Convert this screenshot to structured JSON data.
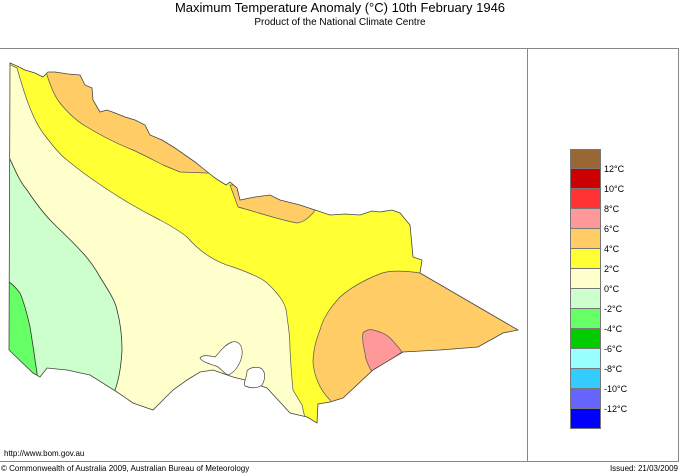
{
  "header": {
    "title": "Maximum Temperature Anomaly (°C)  10th February 1946",
    "subtitle": "Product of the National Climate Centre"
  },
  "legend": {
    "colors": [
      "#996633",
      "#cc0000",
      "#ff3333",
      "#ff9999",
      "#ffcc66",
      "#ffff33",
      "#ffffcc",
      "#ccffcc",
      "#66ff66",
      "#00cc00",
      "#99ffff",
      "#33ccff",
      "#6666ff",
      "#0000ff"
    ],
    "labels": [
      "12°C",
      "10°C",
      "8°C",
      "6°C",
      "4°C",
      "2°C",
      "0°C",
      "-2°C",
      "-4°C",
      "-6°C",
      "-8°C",
      "-10°C",
      "-12°C"
    ]
  },
  "map": {
    "region": "Victoria",
    "zones": [
      {
        "range": "-4 to -2°C",
        "color": "#66ff66",
        "area": "far south-west coast"
      },
      {
        "range": "-2 to 0°C",
        "color": "#ccffcc",
        "area": "west"
      },
      {
        "range": "0 to 2°C",
        "color": "#ffffcc",
        "area": "central west and south"
      },
      {
        "range": "2 to 4°C",
        "color": "#ffff33",
        "area": "north and north-east band"
      },
      {
        "range": "4 to 6°C",
        "color": "#ffcc66",
        "area": "north-west Murray, north-east, Gippsland"
      },
      {
        "range": "6 to 8°C",
        "color": "#ff9999",
        "area": "Gippsland coast"
      }
    ]
  },
  "footer": {
    "url": "http://www.bom.gov.au",
    "copyright": "© Commonwealth of Australia 2009, Australian Bureau of Meteorology",
    "issued": "Issued: 21/03/2009"
  }
}
